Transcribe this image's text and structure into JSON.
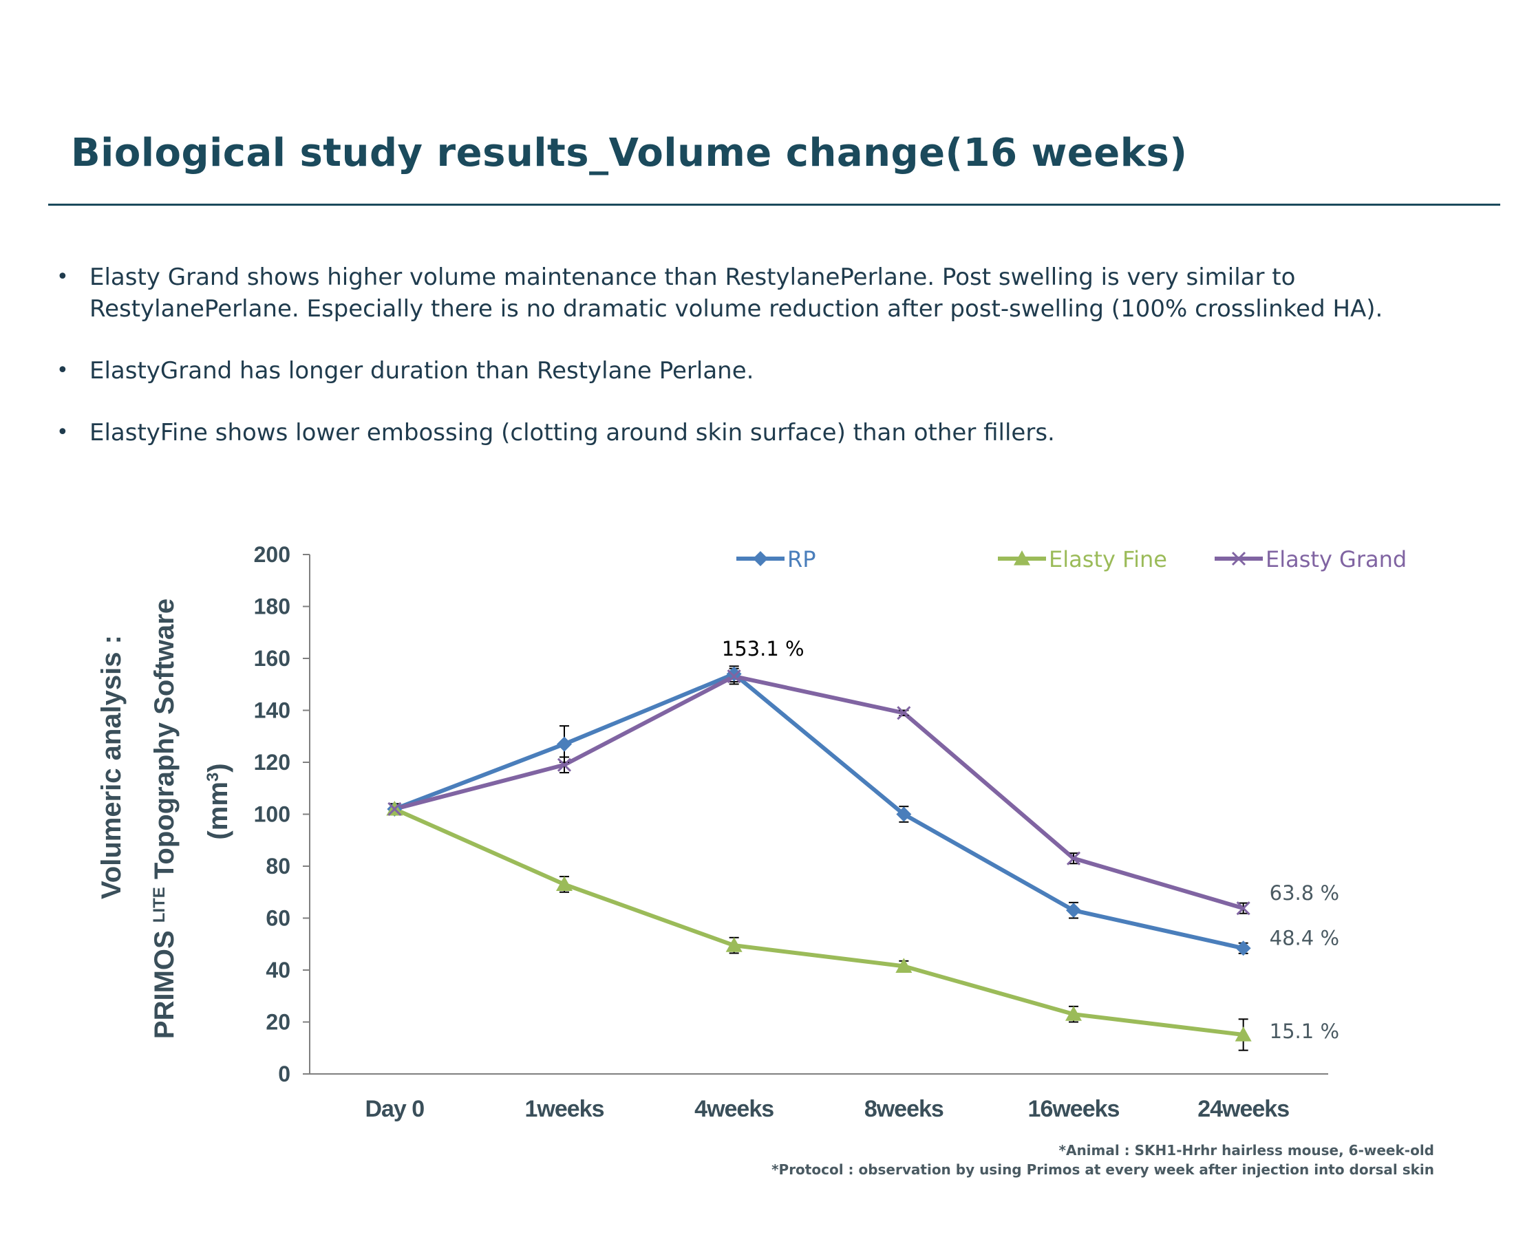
{
  "slide": {
    "title": "Biological study results_Volume change(16 weeks)",
    "bullets": [
      "Elasty Grand shows higher volume maintenance than RestylanePerlane. Post swelling is very similar to RestylanePerlane. Especially there is no dramatic volume reduction after post-swelling (100% crosslinked HA).",
      "ElastyGrand has longer duration than Restylane Perlane.",
      "ElastyFine shows lower embossing (clotting around skin surface) than other fillers."
    ],
    "notes": [
      "*Animal : SKH1-Hrhr hairless mouse, 6-week-old",
      "*Protocol : observation by using Primos at every week after injection into dorsal skin"
    ],
    "colors": {
      "title": "#1b4a5c",
      "text": "#1f3b4d",
      "rule": "#1b4a5c"
    }
  },
  "chart_data": {
    "type": "line",
    "categories": [
      "Day 0",
      "1weeks",
      "4weeks",
      "8weeks",
      "16weeks",
      "24weeks"
    ],
    "ylim": [
      0,
      200
    ],
    "yticks": [
      0,
      20,
      40,
      60,
      80,
      100,
      120,
      140,
      160,
      180,
      200
    ],
    "ylabel_line1": "Volumeric analysis :",
    "ylabel_line2_pre": "PRIMOS",
    "ylabel_line2_sup": "LITE",
    "ylabel_line2_post": "Topography Software",
    "ylabel_line3_pre": "(mm",
    "ylabel_line3_sup": "3",
    "ylabel_line3_post": ")",
    "legend_position": "top",
    "grid": false,
    "series": [
      {
        "name": "RP",
        "color": "#4a7ebb",
        "marker": "diamond",
        "values": [
          102,
          127,
          154,
          100,
          63,
          48.4
        ],
        "errors": [
          2,
          7,
          3,
          3,
          3,
          2
        ]
      },
      {
        "name": "Elasty Fine",
        "color": "#9bbb59",
        "marker": "triangle",
        "values": [
          102,
          73,
          49.5,
          41.5,
          23,
          15.1
        ],
        "errors": [
          2,
          3,
          3,
          2,
          3,
          6
        ]
      },
      {
        "name": "Elasty Grand",
        "color": "#8064a2",
        "marker": "x",
        "values": [
          102,
          119,
          153.1,
          139,
          83,
          63.8
        ],
        "errors": [
          2,
          3,
          3,
          1,
          2,
          2
        ]
      }
    ],
    "annotations": [
      {
        "text": "153.1 %",
        "category": "4weeks",
        "value": 153.1,
        "color": "#000000"
      },
      {
        "text": "63.8 %",
        "category": "24weeks",
        "value": 63.8,
        "color": "#4a5a62"
      },
      {
        "text": "48.4 %",
        "category": "24weeks",
        "value": 48.4,
        "color": "#4a5a62"
      },
      {
        "text": "15.1 %",
        "category": "24weeks",
        "value": 15.1,
        "color": "#4a5a62"
      }
    ],
    "colors": {
      "axis": "#7f7f7f",
      "tick_label": "#3a4f5a",
      "ylabel": "#3a4f5a"
    }
  }
}
